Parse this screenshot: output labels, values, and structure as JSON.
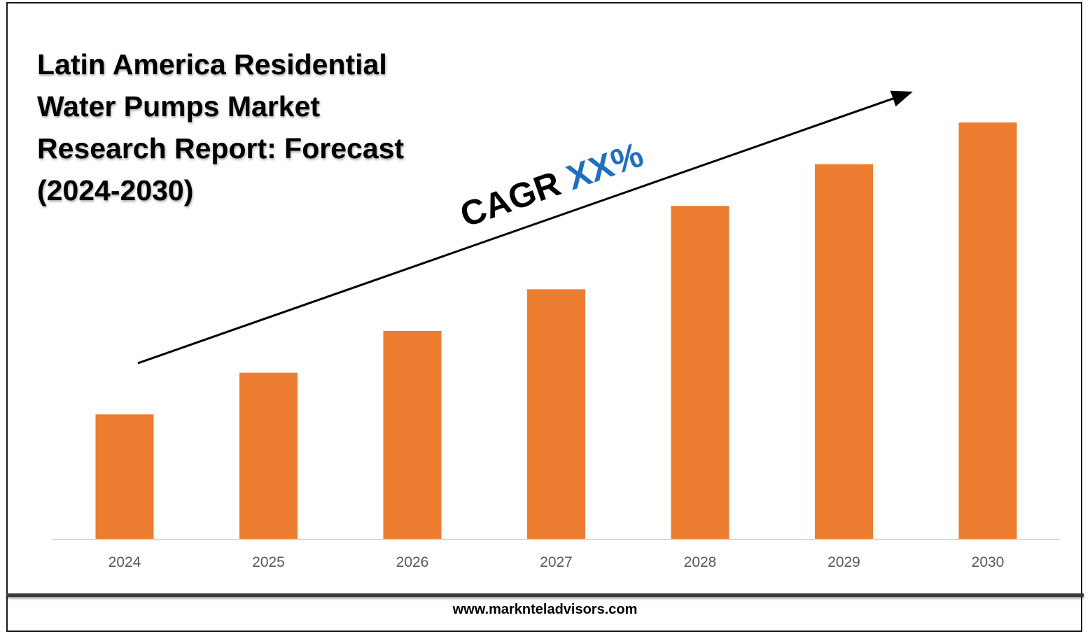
{
  "title": "Latin America Residential Water Pumps Market Research Report: Forecast (2024-2030)",
  "annotation": {
    "label": "CAGR",
    "value": "XX%",
    "label_color": "#000000",
    "value_color": "#1F6FBF"
  },
  "footer": {
    "url": "www.marknteladvisors.com"
  },
  "colors": {
    "bar": "#ED7D31",
    "axis": "#D9D9D9",
    "tick_text": "#595959"
  },
  "chart_data": {
    "type": "bar",
    "title": "Latin America Residential Water Pumps Market Research Report: Forecast (2024-2030)",
    "categories": [
      "2024",
      "2025",
      "2026",
      "2027",
      "2028",
      "2029",
      "2030"
    ],
    "values": [
      30,
      40,
      50,
      60,
      80,
      90,
      100
    ],
    "ylim": [
      0,
      100
    ],
    "xlabel": "",
    "ylabel": "",
    "grid": false,
    "legend": "none"
  }
}
